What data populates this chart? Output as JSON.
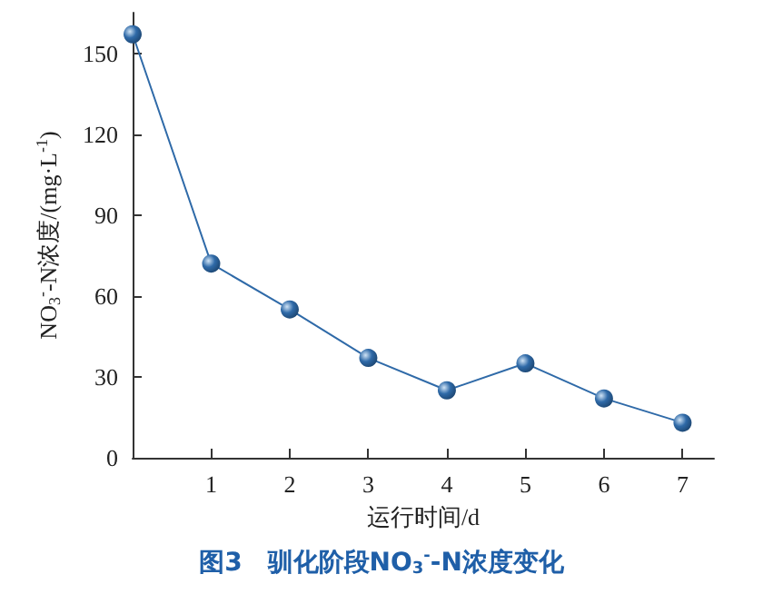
{
  "chart_data": {
    "type": "line",
    "title": "图3　驯化阶段NO$_{3}$$^{-}$-N浓度变化",
    "xlabel": "运行时间/d",
    "ylabel": "NO$_{3}$$^{-}$-N浓度/(mg·L$^{-1}$)",
    "x": [
      0,
      1,
      2,
      3,
      4,
      5,
      6,
      7
    ],
    "series": [
      {
        "color": "#2f6aa8",
        "values": [
          157,
          72,
          55,
          37,
          25,
          35,
          22,
          13
        ]
      }
    ],
    "xlim": [
      0,
      7.4
    ],
    "xticks": [
      1,
      2,
      3,
      4,
      5,
      6,
      7
    ],
    "ylim": [
      0,
      165
    ],
    "yticks": [
      0,
      30,
      60,
      90,
      120,
      150
    ],
    "marker": "circle",
    "line_style": "solid",
    "grid": false
  }
}
